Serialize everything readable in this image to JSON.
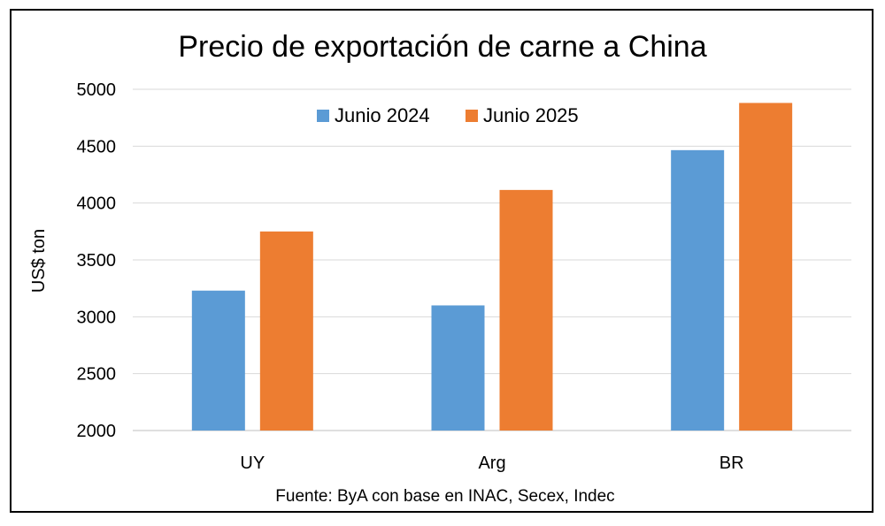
{
  "chart_data": {
    "type": "bar",
    "title": "Precio de exportación de carne a China",
    "ylabel": "US$ ton",
    "xlabel": "",
    "categories": [
      "UY",
      "Arg",
      "BR"
    ],
    "series": [
      {
        "name": "Junio 2024",
        "color": "#5b9bd5",
        "values": [
          3230,
          3100,
          4465
        ]
      },
      {
        "name": "Junio 2025",
        "color": "#ed7d31",
        "values": [
          3750,
          4115,
          4880
        ]
      }
    ],
    "ylim": [
      2000,
      5000
    ],
    "yticks": [
      2000,
      2500,
      3000,
      3500,
      4000,
      4500,
      5000
    ],
    "grid": true,
    "legend_position": "top-center",
    "source": "Fuente: ByA con base en INAC, Secex, Indec"
  }
}
